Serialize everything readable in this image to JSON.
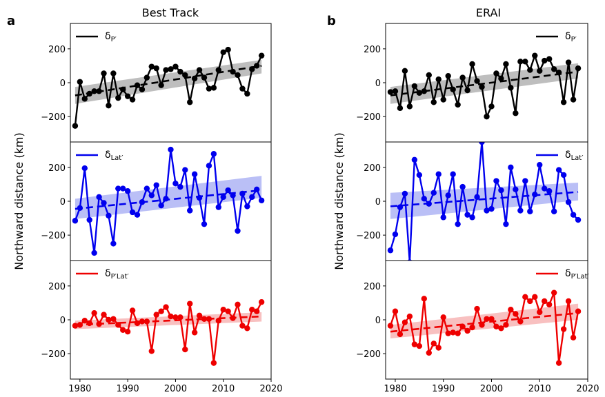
{
  "panels": [
    {
      "letter": "a",
      "title": "Best Track",
      "ylabel": "Northward distance (km)"
    },
    {
      "letter": "b",
      "title": "ERAI",
      "ylabel": "Northward distance (km)"
    }
  ],
  "colors": {
    "black": "#000000",
    "blue": "#0000ee",
    "red": "#ee0000",
    "black_band": "#b3b3b3",
    "blue_band": "#aeb4f5",
    "red_band": "#f7b5b5"
  },
  "chart_data": [
    {
      "panel": "a",
      "subplot": 1,
      "type": "line",
      "legend": {
        "label_main": "δ",
        "label_sub": "P′",
        "placement": "top-left"
      },
      "color": "#000000",
      "x": [
        1979,
        1980,
        1981,
        1982,
        1983,
        1984,
        1985,
        1986,
        1987,
        1988,
        1989,
        1990,
        1991,
        1992,
        1993,
        1994,
        1995,
        1996,
        1997,
        1998,
        1999,
        2000,
        2001,
        2002,
        2003,
        2004,
        2005,
        2006,
        2007,
        2008,
        2009,
        2010,
        2011,
        2012,
        2013,
        2014,
        2015,
        2016,
        2017,
        2018
      ],
      "y": [
        -255,
        5,
        -95,
        -65,
        -50,
        -50,
        55,
        -135,
        55,
        -90,
        -40,
        -80,
        -100,
        -15,
        -40,
        30,
        95,
        85,
        -15,
        75,
        80,
        95,
        65,
        45,
        -115,
        25,
        75,
        30,
        -35,
        -30,
        75,
        180,
        195,
        65,
        45,
        -35,
        -65,
        80,
        100,
        160
      ],
      "trend": {
        "x": [
          1979,
          2018
        ],
        "y": [
          -75,
          100
        ]
      },
      "band": {
        "lower": [
          -125,
          55
        ],
        "upper": [
          -25,
          135
        ]
      },
      "ylim": [
        -350,
        350
      ],
      "yticks": [
        -200,
        0,
        200
      ],
      "xlim": [
        1978,
        2020
      ]
    },
    {
      "panel": "a",
      "subplot": 2,
      "type": "line",
      "legend": {
        "label_main": "δ",
        "label_sub": "Lat′",
        "placement": "top-left"
      },
      "color": "#0000ee",
      "x": [
        1979,
        1980,
        1981,
        1982,
        1983,
        1984,
        1985,
        1986,
        1987,
        1988,
        1989,
        1990,
        1991,
        1992,
        1993,
        1994,
        1995,
        1996,
        1997,
        1998,
        1999,
        2000,
        2001,
        2002,
        2003,
        2004,
        2005,
        2006,
        2007,
        2008,
        2009,
        2010,
        2011,
        2012,
        2013,
        2014,
        2015,
        2016,
        2017,
        2018
      ],
      "y": [
        -115,
        -40,
        195,
        -110,
        -305,
        25,
        -10,
        -85,
        -250,
        75,
        75,
        60,
        -65,
        -80,
        -5,
        75,
        35,
        95,
        -25,
        15,
        305,
        105,
        85,
        185,
        -55,
        160,
        20,
        -135,
        210,
        280,
        -35,
        25,
        65,
        35,
        -175,
        45,
        -30,
        25,
        70,
        5
      ],
      "trend": {
        "x": [
          1979,
          2018
        ],
        "y": [
          -45,
          65
        ]
      },
      "band": {
        "lower": [
          -105,
          20
        ],
        "upper": [
          15,
          150
        ]
      },
      "ylim": [
        -350,
        350
      ],
      "yticks": [
        -200,
        0,
        200
      ],
      "xlim": [
        1978,
        2020
      ]
    },
    {
      "panel": "a",
      "subplot": 3,
      "type": "line",
      "legend": {
        "label_main": "δ",
        "label_sub": "P′Lat′",
        "placement": "top-left"
      },
      "color": "#ee0000",
      "x": [
        1979,
        1980,
        1981,
        1982,
        1983,
        1984,
        1985,
        1986,
        1987,
        1988,
        1989,
        1990,
        1991,
        1992,
        1993,
        1994,
        1995,
        1996,
        1997,
        1998,
        1999,
        2000,
        2001,
        2002,
        2003,
        2004,
        2005,
        2006,
        2007,
        2008,
        2009,
        2010,
        2011,
        2012,
        2013,
        2014,
        2015,
        2016,
        2017,
        2018
      ],
      "y": [
        -35,
        -30,
        -5,
        -20,
        40,
        -25,
        30,
        0,
        5,
        -30,
        -60,
        -70,
        55,
        -20,
        -10,
        -10,
        -185,
        30,
        50,
        75,
        20,
        15,
        15,
        -175,
        95,
        -75,
        25,
        5,
        5,
        -255,
        -5,
        60,
        50,
        10,
        90,
        -35,
        -50,
        60,
        50,
        105
      ],
      "trend": {
        "x": [
          1979,
          2018
        ],
        "y": [
          -30,
          20
        ]
      },
      "band": {
        "lower": [
          -55,
          -10
        ],
        "upper": [
          -5,
          45
        ]
      },
      "ylim": [
        -350,
        350
      ],
      "yticks": [
        -200,
        0,
        200
      ],
      "xlim": [
        1978,
        2020
      ],
      "xticks": [
        1980,
        1990,
        2000,
        2010,
        2020
      ]
    },
    {
      "panel": "b",
      "subplot": 1,
      "type": "line",
      "legend": {
        "label_main": "δ",
        "label_sub": "P′",
        "placement": "top-right"
      },
      "color": "#000000",
      "x": [
        1979,
        1980,
        1981,
        1982,
        1983,
        1984,
        1985,
        1986,
        1987,
        1988,
        1989,
        1990,
        1991,
        1992,
        1993,
        1994,
        1995,
        1996,
        1997,
        1998,
        1999,
        2000,
        2001,
        2002,
        2003,
        2004,
        2005,
        2006,
        2007,
        2008,
        2009,
        2010,
        2011,
        2012,
        2013,
        2014,
        2015,
        2016,
        2017,
        2018
      ],
      "y": [
        -55,
        -50,
        -150,
        70,
        -140,
        -20,
        -60,
        -50,
        45,
        -115,
        20,
        -100,
        40,
        -40,
        -130,
        30,
        -45,
        110,
        10,
        -25,
        -200,
        -140,
        55,
        25,
        110,
        -30,
        -180,
        125,
        125,
        75,
        160,
        70,
        130,
        140,
        80,
        60,
        -115,
        120,
        -100,
        85
      ],
      "trend": {
        "x": [
          1979,
          2018
        ],
        "y": [
          -75,
          65
        ]
      },
      "band": {
        "lower": [
          -125,
          25
        ],
        "upper": [
          -25,
          115
        ]
      },
      "ylim": [
        -350,
        350
      ],
      "yticks": [
        -200,
        0,
        200
      ],
      "xlim": [
        1978,
        2020
      ]
    },
    {
      "panel": "b",
      "subplot": 2,
      "type": "line",
      "legend": {
        "label_main": "δ",
        "label_sub": "Lat′",
        "placement": "top-right"
      },
      "color": "#0000ee",
      "x": [
        1979,
        1980,
        1981,
        1982,
        1983,
        1984,
        1985,
        1986,
        1987,
        1988,
        1989,
        1990,
        1991,
        1992,
        1993,
        1994,
        1995,
        1996,
        1997,
        1998,
        1999,
        2000,
        2001,
        2002,
        2003,
        2004,
        2005,
        2006,
        2007,
        2008,
        2009,
        2010,
        2011,
        2012,
        2013,
        2014,
        2015,
        2016,
        2017,
        2018
      ],
      "y": [
        -290,
        -195,
        -35,
        45,
        -360,
        245,
        155,
        15,
        -15,
        50,
        160,
        -95,
        35,
        160,
        -135,
        85,
        -80,
        -95,
        25,
        350,
        -55,
        -45,
        120,
        65,
        -135,
        200,
        70,
        -55,
        120,
        -60,
        40,
        215,
        75,
        60,
        -60,
        185,
        155,
        -5,
        -80,
        -110
      ],
      "trend": {
        "x": [
          1979,
          2018
        ],
        "y": [
          -30,
          55
        ]
      },
      "band": {
        "lower": [
          -105,
          5
        ],
        "upper": [
          50,
          110
        ]
      },
      "ylim": [
        -350,
        350
      ],
      "yticks": [
        -200,
        0,
        200
      ],
      "xlim": [
        1978,
        2020
      ]
    },
    {
      "panel": "b",
      "subplot": 3,
      "type": "line",
      "legend": {
        "label_main": "δ",
        "label_sub": "P′Lat′",
        "placement": "top-right"
      },
      "color": "#ee0000",
      "x": [
        1979,
        1980,
        1981,
        1982,
        1983,
        1984,
        1985,
        1986,
        1987,
        1988,
        1989,
        1990,
        1991,
        1992,
        1993,
        1994,
        1995,
        1996,
        1997,
        1998,
        1999,
        2000,
        2001,
        2002,
        2003,
        2004,
        2005,
        2006,
        2007,
        2008,
        2009,
        2010,
        2011,
        2012,
        2013,
        2014,
        2015,
        2016,
        2017,
        2018
      ],
      "y": [
        -35,
        50,
        -85,
        -15,
        20,
        -145,
        -155,
        125,
        -195,
        -140,
        -165,
        15,
        -80,
        -75,
        -80,
        -40,
        -65,
        -45,
        65,
        -30,
        5,
        5,
        -40,
        -50,
        -30,
        60,
        35,
        -10,
        135,
        110,
        135,
        45,
        110,
        90,
        160,
        -255,
        -55,
        110,
        -105,
        50
      ],
      "trend": {
        "x": [
          1979,
          2018
        ],
        "y": [
          -70,
          40
        ]
      },
      "band": {
        "lower": [
          -110,
          0
        ],
        "upper": [
          -30,
          95
        ]
      },
      "ylim": [
        -350,
        350
      ],
      "yticks": [
        -200,
        0,
        200
      ],
      "xlim": [
        1978,
        2020
      ],
      "xticks": [
        1980,
        1990,
        2000,
        2010,
        2020
      ]
    }
  ]
}
